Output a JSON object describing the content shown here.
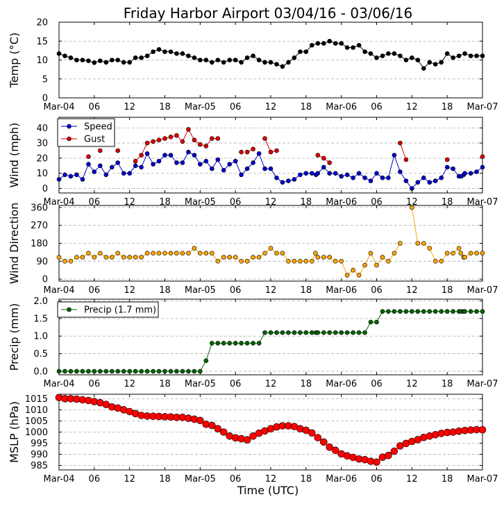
{
  "chart_data": {
    "type": "line",
    "title": "Friday Harbor Airport 03/04/16 - 03/06/16",
    "xlabel": "Time (UTC)",
    "xlim": [
      0,
      72
    ],
    "x_ticks": [
      {
        "v": 0,
        "label": "Mar-04"
      },
      {
        "v": 6,
        "label": "06"
      },
      {
        "v": 12,
        "label": "12"
      },
      {
        "v": 18,
        "label": "18"
      },
      {
        "v": 24,
        "label": "Mar-05"
      },
      {
        "v": 30,
        "label": "06"
      },
      {
        "v": 36,
        "label": "12"
      },
      {
        "v": 42,
        "label": "18"
      },
      {
        "v": 48,
        "label": "Mar-06"
      },
      {
        "v": 54,
        "label": "06"
      },
      {
        "v": 60,
        "label": "12"
      },
      {
        "v": 66,
        "label": "18"
      },
      {
        "v": 72,
        "label": "Mar-07"
      }
    ],
    "panels": [
      {
        "ylabel": "Temp (°C)",
        "ylim": [
          0,
          20
        ],
        "yticks": [
          0,
          5,
          10,
          15,
          20
        ],
        "legend": null,
        "series": [
          {
            "name": "Temp",
            "color": "#000000",
            "marker_size": 3,
            "line_width": 1,
            "x": [
              0,
              1,
              2,
              3,
              4,
              5,
              6,
              7,
              8,
              9,
              10,
              11,
              12,
              13,
              14,
              15,
              16,
              17,
              18,
              19,
              20,
              21,
              22,
              23,
              24,
              25,
              26,
              27,
              28,
              29,
              30,
              31,
              32,
              33,
              34,
              35,
              36,
              37,
              38,
              39,
              40,
              41,
              42,
              43,
              44,
              45,
              46,
              47,
              48,
              49,
              50,
              51,
              52,
              53,
              54,
              55,
              56,
              57,
              58,
              59,
              60,
              61,
              62,
              63,
              64,
              65,
              66,
              67,
              68,
              69,
              70,
              71,
              72
            ],
            "y": [
              11.7,
              11.1,
              10.6,
              10,
              10,
              9.8,
              9.3,
              9.8,
              9.4,
              10,
              10,
              9.4,
              9.4,
              10.6,
              10.6,
              11.1,
              12.2,
              12.8,
              12.2,
              12.2,
              11.7,
              11.7,
              11.1,
              10.6,
              10,
              10,
              9.4,
              10,
              9.4,
              10,
              10,
              9.4,
              10.6,
              11.1,
              10,
              9.4,
              9.4,
              8.9,
              8.3,
              9.4,
              10.6,
              12.2,
              12.2,
              13.9,
              14.4,
              14.4,
              15,
              14.4,
              14.4,
              13.3,
              13.3,
              13.9,
              12.2,
              11.7,
              10.6,
              11.1,
              11.7,
              11.7,
              11.1,
              10,
              10.6,
              10,
              7.8,
              9.4,
              8.9,
              9.4,
              11.7,
              10.6,
              11.1,
              11.7,
              11.1,
              11.1,
              11.1
            ]
          }
        ]
      },
      {
        "ylabel": "Wind (mph)",
        "ylim": [
          -3,
          47
        ],
        "yticks": [
          0,
          10,
          20,
          30,
          40
        ],
        "legend": {
          "placement": "top-left"
        },
        "series": [
          {
            "name": "Speed",
            "color": "#0000cc",
            "marker_size": 3,
            "line_width": 1,
            "x": [
              0,
              1,
              2,
              3,
              4,
              5,
              6,
              7,
              8,
              9,
              10,
              11,
              12,
              13,
              14,
              15,
              16,
              17,
              18,
              19,
              20,
              21,
              22,
              23,
              24,
              25,
              26,
              27,
              28,
              29,
              30,
              31,
              32,
              33,
              34,
              35,
              36,
              37,
              38,
              39,
              40,
              41,
              42,
              43,
              43.7,
              44,
              45,
              46,
              47,
              48,
              49,
              50,
              51,
              52,
              53,
              54,
              55,
              56,
              57,
              58,
              59,
              60,
              61,
              62,
              63,
              64,
              65,
              66,
              67,
              68,
              68.4,
              68.8,
              69,
              70,
              71,
              72
            ],
            "y": [
              6,
              9,
              8,
              9,
              6,
              16,
              11,
              15,
              9,
              14,
              17,
              10,
              10,
              15,
              14,
              23,
              16,
              18,
              22,
              22,
              17,
              17,
              24,
              22,
              16,
              18,
              13,
              19,
              12,
              16,
              18,
              9,
              13,
              17,
              23,
              13,
              13,
              7,
              4,
              5,
              6,
              9,
              10,
              10,
              9,
              10,
              14,
              10,
              10,
              8,
              9,
              7,
              10,
              7,
              5,
              10,
              7,
              7,
              22,
              11,
              5,
              0,
              4,
              7,
              4,
              5,
              7,
              14,
              13,
              8,
              8,
              9,
              10,
              10,
              11,
              14
            ]
          },
          {
            "name": "Gust",
            "color": "#dd0000",
            "marker_size": 3,
            "line_width": 1,
            "x": [
              5,
              7,
              10,
              13,
              14,
              15,
              16,
              17,
              18,
              19,
              20,
              21,
              22,
              23,
              24,
              25,
              26,
              27,
              31,
              32,
              33,
              35,
              36,
              37,
              44,
              45,
              46,
              58,
              59,
              66,
              72
            ],
            "y": [
              21,
              25,
              25,
              18,
              22,
              30,
              31,
              32,
              33,
              34,
              35,
              31,
              39,
              32,
              29,
              28,
              33,
              33,
              24,
              24,
              26,
              33,
              24,
              25,
              22,
              20,
              17,
              30,
              19,
              19,
              21
            ]
          }
        ],
        "gaps_after_x": [
          5,
          7,
          10,
          27,
          31,
          33,
          37,
          46,
          59,
          66
        ]
      },
      {
        "ylabel": "Wind Direction",
        "ylim": [
          -10,
          370
        ],
        "yticks": [
          0,
          90,
          180,
          270,
          360
        ],
        "legend": null,
        "series": [
          {
            "name": "Direction",
            "color": "#ffa500",
            "marker_size": 3,
            "line_width": 1,
            "x": [
              0,
              1,
              2,
              3,
              4,
              5,
              6,
              7,
              8,
              9,
              10,
              11,
              12,
              13,
              14,
              15,
              16,
              17,
              18,
              19,
              20,
              21,
              22,
              23,
              24,
              25,
              26,
              27,
              28,
              29,
              30,
              31,
              32,
              33,
              34,
              35,
              36,
              37,
              38,
              39,
              40,
              41,
              42,
              43,
              43.6,
              44,
              45,
              46,
              47,
              48,
              49,
              50,
              51,
              52,
              53,
              54,
              55,
              56,
              57,
              58,
              59,
              60,
              61,
              62,
              63,
              64,
              65,
              66,
              67,
              68,
              68.3,
              68.8,
              69,
              70,
              71,
              72
            ],
            "y": [
              110,
              90,
              90,
              110,
              110,
              130,
              110,
              130,
              110,
              110,
              130,
              110,
              110,
              110,
              110,
              130,
              130,
              130,
              130,
              130,
              130,
              130,
              130,
              155,
              130,
              130,
              130,
              90,
              110,
              110,
              110,
              90,
              90,
              110,
              110,
              130,
              155,
              130,
              130,
              90,
              90,
              90,
              90,
              90,
              130,
              110,
              110,
              110,
              90,
              90,
              20,
              45,
              20,
              70,
              130,
              70,
              110,
              90,
              130,
              180,
              null,
              360,
              180,
              180,
              155,
              90,
              90,
              130,
              130,
              155,
              130,
              110,
              110,
              130,
              130,
              130
            ]
          }
        ]
      },
      {
        "ylabel": "Precip (mm)",
        "ylim": [
          -0.1,
          2.05
        ],
        "yticks": [
          0.0,
          0.5,
          1.0,
          1.5,
          2.0
        ],
        "legend": {
          "placement": "top-left"
        },
        "series": [
          {
            "name": "Precip (1.7 mm)",
            "color": "#006400",
            "marker_size": 3,
            "line_width": 1,
            "x": [
              0,
              1,
              2,
              3,
              4,
              5,
              6,
              7,
              8,
              9,
              10,
              11,
              12,
              13,
              14,
              15,
              16,
              17,
              18,
              19,
              20,
              21,
              22,
              23,
              24,
              25,
              26,
              27,
              28,
              29,
              30,
              31,
              32,
              33,
              34,
              35,
              36,
              37,
              38,
              39,
              40,
              41,
              42,
              43,
              43.7,
              44,
              45,
              46,
              47,
              48,
              49,
              50,
              51,
              52,
              53,
              54,
              55,
              56,
              57,
              58,
              59,
              60,
              61,
              62,
              63,
              64,
              65,
              66,
              67,
              68,
              68.4,
              68.8,
              69,
              70,
              71,
              72
            ],
            "y": [
              0,
              0,
              0,
              0,
              0,
              0,
              0,
              0,
              0,
              0,
              0,
              0,
              0,
              0,
              0,
              0,
              0,
              0,
              0,
              0,
              0,
              0,
              0,
              0,
              0,
              0.3,
              0.8,
              0.8,
              0.8,
              0.8,
              0.8,
              0.8,
              0.8,
              0.8,
              0.8,
              1.1,
              1.1,
              1.1,
              1.1,
              1.1,
              1.1,
              1.1,
              1.1,
              1.1,
              1.1,
              1.1,
              1.1,
              1.1,
              1.1,
              1.1,
              1.1,
              1.1,
              1.1,
              1.1,
              1.4,
              1.4,
              1.7,
              1.7,
              1.7,
              1.7,
              1.7,
              1.7,
              1.7,
              1.7,
              1.7,
              1.7,
              1.7,
              1.7,
              1.7,
              1.7,
              1.7,
              1.7,
              1.7,
              1.7,
              1.7,
              1.7
            ]
          }
        ]
      },
      {
        "ylabel": "MSLP (hPa)",
        "ylim": [
          983,
          1017
        ],
        "yticks": [
          985,
          990,
          995,
          1000,
          1005,
          1010,
          1015
        ],
        "legend": null,
        "series": [
          {
            "name": "MSLP",
            "color": "#ff0000",
            "marker_size": 5,
            "line_width": 1,
            "x": [
              0,
              1,
              2,
              3,
              4,
              5,
              6,
              7,
              8,
              9,
              10,
              11,
              12,
              13,
              14,
              15,
              16,
              17,
              18,
              19,
              20,
              21,
              22,
              23,
              24,
              25,
              26,
              27,
              28,
              29,
              30,
              31,
              32,
              33,
              34,
              35,
              36,
              37,
              38,
              39,
              40,
              41,
              42,
              43,
              44,
              45,
              46,
              47,
              48,
              49,
              50,
              51,
              52,
              53,
              54,
              55,
              56,
              57,
              58,
              59,
              60,
              61,
              62,
              63,
              64,
              65,
              66,
              67,
              68,
              69,
              70,
              71,
              72
            ],
            "y": [
              1015.5,
              1015,
              1015,
              1014.8,
              1014.5,
              1014.2,
              1013.7,
              1013.2,
              1012.4,
              1011.3,
              1010.8,
              1010,
              1009.2,
              1008.3,
              1007.5,
              1007.2,
              1007.1,
              1007,
              1006.9,
              1006.8,
              1006.6,
              1006.6,
              1006.2,
              1005.8,
              1005.2,
              1003.5,
              1003,
              1001.5,
              1000,
              998.2,
              997.4,
              997,
              996.5,
              998.2,
              999.5,
              1000.5,
              1001.5,
              1002.3,
              1002.8,
              1002.8,
              1002.5,
              1001.5,
              1000.8,
              999.6,
              997.5,
              995.5,
              993.2,
              991.8,
              990.2,
              989.3,
              988.6,
              987.9,
              987.6,
              986.9,
              986.5,
              988.7,
              989.5,
              991.4,
              993.8,
              994.9,
              995.8,
              996.6,
              997.6,
              998.2,
              998.8,
              999.4,
              999.8,
              1000,
              1000.4,
              1000.7,
              1000.9,
              1001.1,
              1001
            ]
          }
        ]
      }
    ]
  }
}
